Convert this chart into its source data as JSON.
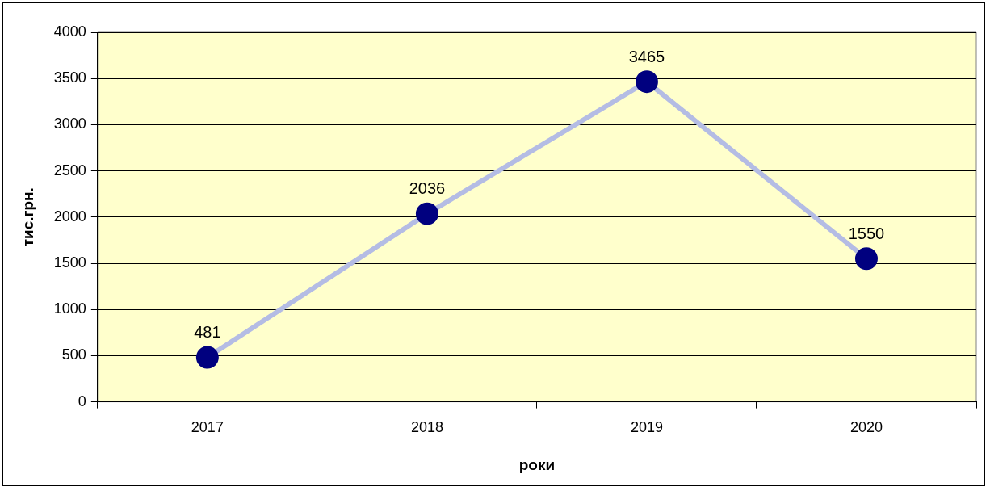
{
  "chart_data": {
    "type": "line",
    "xlabel": "роки",
    "ylabel": "тис.грн.",
    "categories": [
      "2017",
      "2018",
      "2019",
      "2020"
    ],
    "series": [
      {
        "color": "#00007f",
        "values": [
          481,
          2036,
          3465,
          1550
        ]
      }
    ],
    "ylim": [
      0,
      4000
    ],
    "yticks": [
      0,
      500,
      1000,
      1500,
      2000,
      2500,
      3000,
      3500,
      4000
    ],
    "grid": "y",
    "marker": "circle",
    "line_style": "solid",
    "data_labels": true,
    "legend": false
  }
}
